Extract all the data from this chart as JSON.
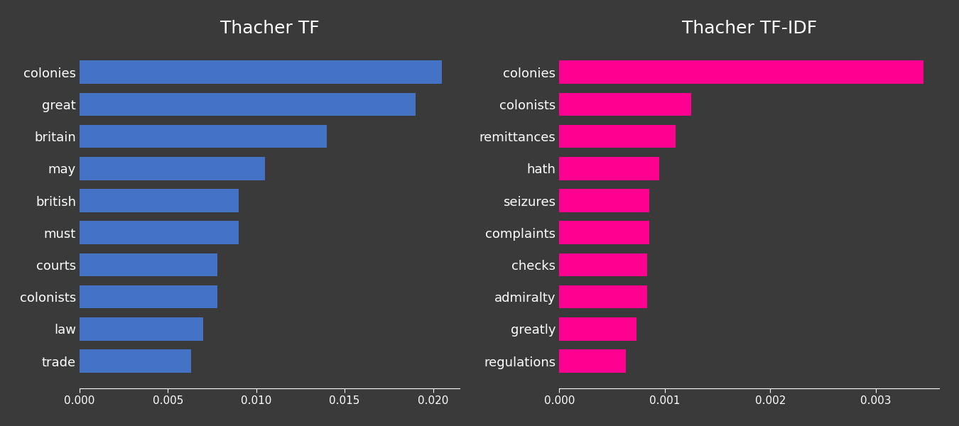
{
  "tf_labels": [
    "colonies",
    "great",
    "britain",
    "may",
    "british",
    "must",
    "courts",
    "colonists",
    "law",
    "trade"
  ],
  "tf_values": [
    0.0205,
    0.019,
    0.014,
    0.0105,
    0.009,
    0.009,
    0.0078,
    0.0078,
    0.007,
    0.0063
  ],
  "tfidf_labels": [
    "colonies",
    "colonists",
    "remittances",
    "hath",
    "seizures",
    "complaints",
    "checks",
    "admiralty",
    "greatly",
    "regulations"
  ],
  "tfidf_values": [
    0.00345,
    0.00125,
    0.0011,
    0.00095,
    0.00085,
    0.00085,
    0.00083,
    0.00083,
    0.00073,
    0.00063
  ],
  "tf_color": "#4472C4",
  "tfidf_color": "#FF0090",
  "background_color": "#3a3a3a",
  "text_color": "white",
  "title_tf": "Thacher TF",
  "title_tfidf": "Thacher TF-IDF",
  "tf_xlim": [
    0,
    0.0215
  ],
  "tfidf_xlim": [
    0,
    0.0036
  ],
  "tf_xticks": [
    0.0,
    0.005,
    0.01,
    0.015,
    0.02
  ],
  "tfidf_xticks": [
    0.0,
    0.001,
    0.002,
    0.003
  ],
  "title_fontsize": 18,
  "label_fontsize": 13,
  "tick_fontsize": 11,
  "bar_height": 0.72
}
